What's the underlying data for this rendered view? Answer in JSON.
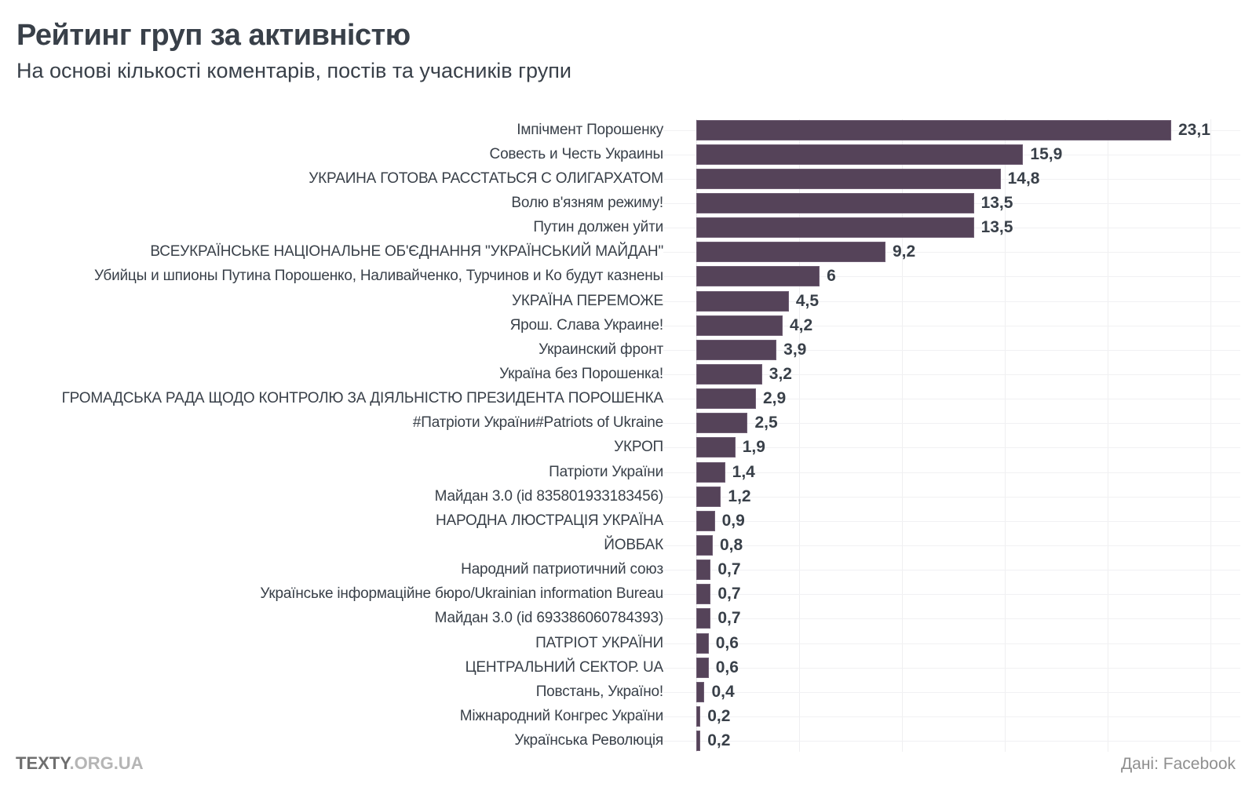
{
  "header": {
    "title": "Рейтинг груп за активністю",
    "subtitle": "На основі кількості коментарів, постів та учасників групи"
  },
  "footer": {
    "brand_primary": "TEXTY",
    "brand_secondary": ".ORG.UA",
    "source": "Дані: Facebook"
  },
  "colors": {
    "bar": "#554359",
    "bar_border": "#6e5d73",
    "text": "#394049",
    "grid": "#efeff1",
    "muted": "#8f8f8f"
  },
  "chart_data": {
    "type": "bar",
    "orientation": "horizontal",
    "title": "Рейтинг груп за активністю",
    "subtitle": "На основі кількості коментарів, постів та учасників групи",
    "xlabel": "",
    "ylabel": "",
    "legend": false,
    "grid": true,
    "axis": {
      "min": 0,
      "scale_max": 26.46,
      "gridlines": [
        0,
        5,
        10,
        15,
        20,
        25
      ]
    },
    "items": [
      {
        "label": "Імпічмент Порошенку",
        "value": 23.1,
        "value_label": "23,1"
      },
      {
        "label": "Совесть и Честь Украины",
        "value": 15.9,
        "value_label": "15,9"
      },
      {
        "label": "УКРАИНА ГОТОВА РАССТАТЬСЯ С ОЛИГАРХАТОМ",
        "value": 14.8,
        "value_label": "14,8"
      },
      {
        "label": "Волю в'язням режиму!",
        "value": 13.5,
        "value_label": "13,5"
      },
      {
        "label": "Путин должен уйти",
        "value": 13.5,
        "value_label": "13,5"
      },
      {
        "label": "ВСЕУКРАЇНСЬКЕ НАЦІОНАЛЬНЕ ОБ'ЄДНАННЯ \"УКРАЇНСЬКИЙ МАЙДАН\"",
        "value": 9.2,
        "value_label": "9,2"
      },
      {
        "label": "Убийцы и шпионы Путина Порошенко, Наливайченко, Турчинов и Ко будут казнены",
        "value": 6,
        "value_label": "6"
      },
      {
        "label": "УКРАЇНА ПЕРЕМОЖЕ",
        "value": 4.5,
        "value_label": "4,5"
      },
      {
        "label": "Ярош. Слава Украине!",
        "value": 4.2,
        "value_label": "4,2"
      },
      {
        "label": "Украинский фронт",
        "value": 3.9,
        "value_label": "3,9"
      },
      {
        "label": "Україна без Порошенка!",
        "value": 3.2,
        "value_label": "3,2"
      },
      {
        "label": "ГРОМАДСЬКА РАДА ЩОДО КОНТРОЛЮ ЗА ДІЯЛЬНІСТЮ ПРЕЗИДЕНТА ПОРОШЕНКА",
        "value": 2.9,
        "value_label": "2,9"
      },
      {
        "label": "#Патріоти України#Patriots of Ukraine",
        "value": 2.5,
        "value_label": "2,5"
      },
      {
        "label": "УКРОП",
        "value": 1.9,
        "value_label": "1,9"
      },
      {
        "label": "Патріоти України",
        "value": 1.4,
        "value_label": "1,4"
      },
      {
        "label": "Майдан 3.0 (id 835801933183456)",
        "value": 1.2,
        "value_label": "1,2"
      },
      {
        "label": "НАРОДНА ЛЮСТРАЦІЯ УКРАЇНА",
        "value": 0.9,
        "value_label": "0,9"
      },
      {
        "label": "ЙОВБАК",
        "value": 0.8,
        "value_label": "0,8"
      },
      {
        "label": "Народний патриотичний союз",
        "value": 0.7,
        "value_label": "0,7"
      },
      {
        "label": "Українське інформаційне бюро/Ukrainian information Bureau",
        "value": 0.7,
        "value_label": "0,7"
      },
      {
        "label": "Майдан 3.0 (id 693386060784393)",
        "value": 0.7,
        "value_label": "0,7"
      },
      {
        "label": "ПАТРІОТ УКРАЇНИ",
        "value": 0.6,
        "value_label": "0,6"
      },
      {
        "label": "ЦЕНТРАЛЬНИЙ СЕКТОР. UA",
        "value": 0.6,
        "value_label": "0,6"
      },
      {
        "label": "Повстань, Україно!",
        "value": 0.4,
        "value_label": "0,4"
      },
      {
        "label": "Міжнародний Конгрес України",
        "value": 0.2,
        "value_label": "0,2"
      },
      {
        "label": "Українська Революція",
        "value": 0.2,
        "value_label": "0,2"
      }
    ]
  }
}
